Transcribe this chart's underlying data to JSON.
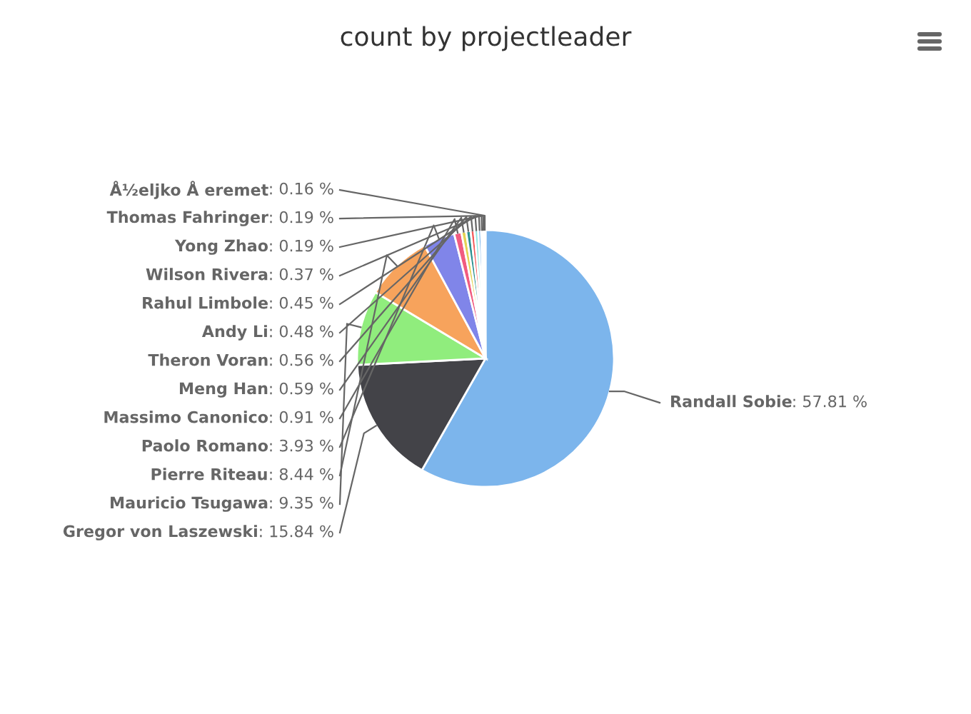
{
  "chart_data": {
    "type": "pie",
    "title": "count by projectleader",
    "categories": [
      "Randall Sobie",
      "Gregor von Laszewski",
      "Mauricio Tsugawa",
      "Pierre Riteau",
      "Paolo Romano",
      "Massimo Canonico",
      "Meng Han",
      "Theron Voran",
      "Andy Li",
      "Rahul Limbole",
      "Wilson Rivera",
      "Yong Zhao",
      "Thomas Fahringer",
      "Å½eljko Å eremet"
    ],
    "values": [
      57.81,
      15.84,
      9.35,
      8.44,
      3.93,
      0.91,
      0.59,
      0.56,
      0.48,
      0.45,
      0.37,
      0.19,
      0.19,
      0.16
    ],
    "colors": [
      "#7cb5ec",
      "#434348",
      "#90ed7d",
      "#f7a35c",
      "#8085e9",
      "#f15c80",
      "#e4d354",
      "#2b908f",
      "#f45b5b",
      "#91e8e1",
      "#7cb5ec",
      "#434348",
      "#90ed7d",
      "#f7a35c"
    ],
    "value_labels": [
      ": 57.81 %",
      ": 15.84 %",
      ": 9.35 %",
      ": 8.44 %",
      ": 3.93 %",
      ": 0.91 %",
      ": 0.59 %",
      ": 0.56 %",
      ": 0.48 %",
      ": 0.45 %",
      ": 0.37 %",
      ": 0.19 %",
      ": 0.19 %",
      ": 0.16 %"
    ]
  }
}
